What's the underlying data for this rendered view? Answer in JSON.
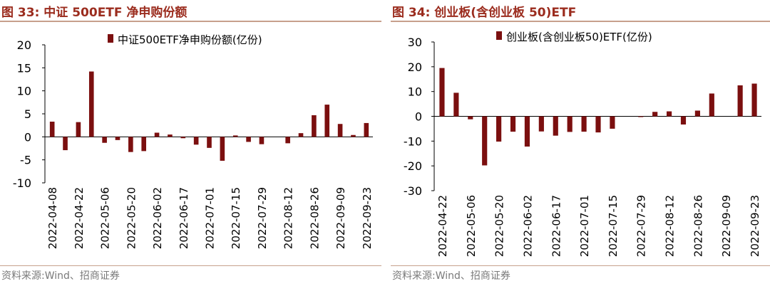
{
  "figures": [
    {
      "title": "图 33:  中证 500ETF 净申购份额",
      "source": "资料来源:Wind、招商证券"
    },
    {
      "title": "图 34:  创业板(含创业板 50)ETF",
      "source": "资料来源:Wind、招商证券"
    }
  ],
  "colors": {
    "bar": "#7B0F0F",
    "title": "#9B2C1E",
    "rule": "#C7A08C",
    "source": "#7a7a7a"
  },
  "chart_data": [
    {
      "type": "bar",
      "title": "",
      "legend": "中证500ETF净申购份额(亿份)",
      "legend_position": "top-center",
      "xlabel": "",
      "ylabel": "",
      "ylim": [
        -10,
        20
      ],
      "yticks": [
        -10,
        -5,
        0,
        5,
        10,
        15,
        20
      ],
      "tick_labels": [
        "2022-04-08",
        "2022-04-22",
        "2022-05-06",
        "2022-05-20",
        "2022-06-02",
        "2022-06-17",
        "2022-07-01",
        "2022-07-15",
        "2022-07-29",
        "2022-08-12",
        "2022-08-26",
        "2022-09-09",
        "2022-09-23"
      ],
      "tick_every": 2,
      "values": [
        3.3,
        -2.9,
        3.2,
        14.2,
        -1.3,
        -0.7,
        -3.3,
        -3.1,
        0.9,
        0.5,
        -0.3,
        -1.7,
        -2.4,
        -5.2,
        0.3,
        -1.1,
        -1.6,
        0.0,
        -1.4,
        0.8,
        4.7,
        7.0,
        2.8,
        0.4,
        3.0
      ]
    },
    {
      "type": "bar",
      "title": "",
      "legend": "创业板(含创业板50)ETF(亿份)",
      "legend_position": "top-center",
      "xlabel": "",
      "ylabel": "",
      "ylim": [
        -30,
        30
      ],
      "yticks": [
        -30,
        -20,
        -10,
        0,
        10,
        20,
        30
      ],
      "tick_labels": [
        "2022-04-22",
        "2022-05-06",
        "2022-05-20",
        "2022-06-02",
        "2022-06-17",
        "2022-07-01",
        "2022-07-15",
        "2022-07-29",
        "2022-08-12",
        "2022-08-26",
        "2022-09-09",
        "2022-09-23"
      ],
      "tick_every": 2,
      "values": [
        19.5,
        9.5,
        -1.2,
        -19.8,
        -10.2,
        -6.2,
        -12.2,
        -6.1,
        -7.8,
        -6.3,
        -6.2,
        -6.5,
        -5.0,
        0.0,
        -0.3,
        1.8,
        2.0,
        -3.3,
        2.3,
        9.2,
        0.0,
        12.5,
        13.2
      ]
    }
  ]
}
